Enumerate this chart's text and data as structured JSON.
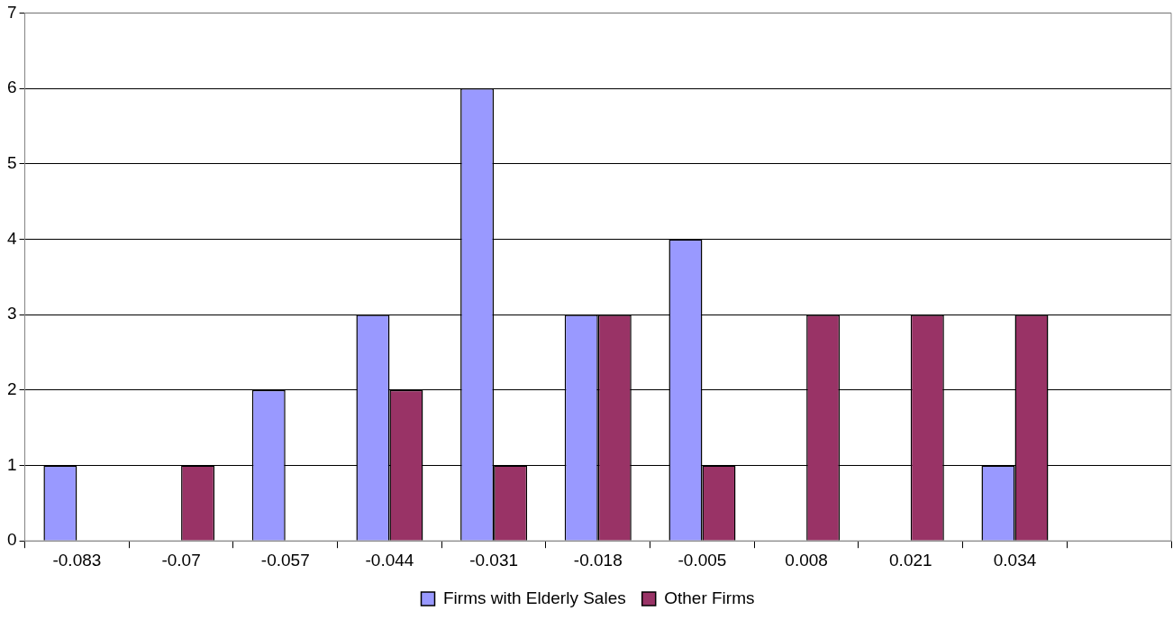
{
  "chart_data": {
    "type": "bar",
    "categories": [
      "-0.083",
      "-0.07",
      "-0.057",
      "-0.044",
      "-0.031",
      "-0.018",
      "-0.005",
      "0.008",
      "0.021",
      "0.034",
      null
    ],
    "series": [
      {
        "name": "Firms with Elderly Sales",
        "color": "#9999ff",
        "values": [
          1,
          0,
          2,
          3,
          6,
          3,
          4,
          0,
          0,
          1,
          0
        ]
      },
      {
        "name": "Other Firms",
        "color": "#993366",
        "values": [
          0,
          1,
          0,
          2,
          1,
          3,
          1,
          3,
          3,
          3,
          0
        ]
      }
    ],
    "ylim": [
      0,
      7
    ],
    "yticks": [
      0,
      1,
      2,
      3,
      4,
      5,
      6,
      7
    ],
    "grid": "y",
    "legend": "bottom"
  }
}
